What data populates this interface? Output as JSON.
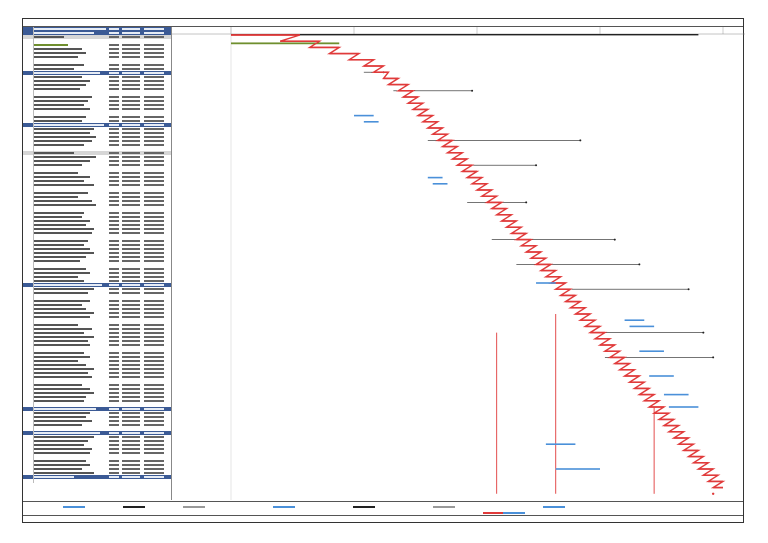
{
  "page": {
    "footer_text": "",
    "title_text": ""
  },
  "colors": {
    "critical": "#e03a3a",
    "normal": "#4a90d9",
    "baseline": "#222222",
    "summary_green": "#6f8f2e",
    "summary_row": "#3b5a95"
  },
  "table": {
    "row_kinds": [
      "summary",
      "summary",
      "sub",
      "blank",
      "green",
      "task",
      "task",
      "task",
      "blank",
      "task",
      "task",
      "summary",
      "task",
      "task",
      "task",
      "task",
      "blank",
      "task",
      "task",
      "task",
      "task",
      "blank",
      "task",
      "task",
      "summary",
      "task",
      "task",
      "task",
      "task",
      "task",
      "blank",
      "sub",
      "task",
      "task",
      "task",
      "blank",
      "task",
      "task",
      "task",
      "task",
      "blank",
      "task",
      "task",
      "task",
      "task",
      "blank",
      "task",
      "task",
      "task",
      "task",
      "task",
      "task",
      "blank",
      "task",
      "task",
      "task",
      "task",
      "task",
      "task",
      "blank",
      "task",
      "task",
      "task",
      "task",
      "summary",
      "task",
      "task",
      "blank",
      "task",
      "task",
      "task",
      "task",
      "task",
      "blank",
      "task",
      "task",
      "task",
      "task",
      "task",
      "task",
      "blank",
      "task",
      "task",
      "task",
      "task",
      "task",
      "task",
      "task",
      "blank",
      "task",
      "task",
      "task",
      "task",
      "task",
      "blank",
      "summary",
      "task",
      "task",
      "task",
      "task",
      "blank",
      "summary",
      "task",
      "task",
      "task",
      "task",
      "task",
      "blank",
      "task",
      "task",
      "task",
      "task",
      "summary",
      "blank"
    ],
    "name_widths": [
      72,
      60,
      30,
      0,
      34,
      48,
      52,
      44,
      0,
      50,
      40,
      66,
      48,
      56,
      52,
      46,
      0,
      58,
      54,
      50,
      56,
      0,
      52,
      48,
      70,
      60,
      56,
      62,
      58,
      50,
      0,
      40,
      62,
      56,
      48,
      0,
      44,
      56,
      50,
      60,
      0,
      54,
      44,
      58,
      62,
      0,
      50,
      48,
      56,
      52,
      60,
      58,
      0,
      54,
      50,
      56,
      60,
      52,
      46,
      0,
      52,
      56,
      44,
      50,
      68,
      60,
      54,
      0,
      56,
      48,
      52,
      60,
      56,
      0,
      44,
      58,
      50,
      60,
      54,
      56,
      0,
      50,
      56,
      44,
      52,
      60,
      54,
      58,
      0,
      48,
      56,
      60,
      52,
      50,
      0,
      62,
      56,
      52,
      58,
      48,
      0,
      66,
      60,
      54,
      50,
      58,
      56,
      0,
      52,
      56,
      48,
      60,
      40,
      0
    ]
  },
  "chart_data": {
    "type": "gantt",
    "series": [
      {
        "name": "critical",
        "tasks": [
          [
            0,
            0.0,
            0.14
          ],
          [
            1,
            0.1,
            0.18
          ],
          [
            2,
            0.16,
            0.22
          ],
          [
            3,
            0.2,
            0.26
          ],
          [
            4,
            0.24,
            0.29
          ],
          [
            5,
            0.27,
            0.31
          ],
          [
            6,
            0.29,
            0.32
          ],
          [
            7,
            0.31,
            0.34
          ],
          [
            8,
            0.32,
            0.36
          ],
          [
            9,
            0.34,
            0.37
          ],
          [
            10,
            0.35,
            0.38
          ],
          [
            11,
            0.36,
            0.39
          ],
          [
            12,
            0.37,
            0.4
          ],
          [
            13,
            0.38,
            0.41
          ],
          [
            14,
            0.39,
            0.42
          ],
          [
            15,
            0.4,
            0.43
          ],
          [
            16,
            0.41,
            0.44
          ],
          [
            17,
            0.42,
            0.45
          ],
          [
            18,
            0.43,
            0.46
          ],
          [
            19,
            0.44,
            0.47
          ],
          [
            20,
            0.45,
            0.48
          ],
          [
            21,
            0.46,
            0.49
          ],
          [
            22,
            0.47,
            0.5
          ],
          [
            23,
            0.48,
            0.51
          ],
          [
            24,
            0.49,
            0.52
          ],
          [
            25,
            0.5,
            0.53
          ],
          [
            26,
            0.51,
            0.54
          ],
          [
            27,
            0.52,
            0.55
          ],
          [
            28,
            0.53,
            0.56
          ],
          [
            29,
            0.54,
            0.57
          ],
          [
            30,
            0.55,
            0.58
          ],
          [
            31,
            0.56,
            0.59
          ],
          [
            32,
            0.57,
            0.6
          ],
          [
            33,
            0.58,
            0.61
          ],
          [
            34,
            0.59,
            0.62
          ],
          [
            35,
            0.6,
            0.63
          ],
          [
            36,
            0.61,
            0.64
          ],
          [
            37,
            0.62,
            0.65
          ],
          [
            38,
            0.63,
            0.66
          ],
          [
            39,
            0.64,
            0.67
          ],
          [
            40,
            0.65,
            0.68
          ],
          [
            41,
            0.66,
            0.69
          ],
          [
            42,
            0.67,
            0.7
          ],
          [
            43,
            0.68,
            0.71
          ],
          [
            44,
            0.69,
            0.72
          ],
          [
            45,
            0.7,
            0.73
          ],
          [
            46,
            0.71,
            0.74
          ],
          [
            47,
            0.72,
            0.75
          ],
          [
            48,
            0.73,
            0.76
          ],
          [
            49,
            0.74,
            0.77
          ],
          [
            50,
            0.75,
            0.78
          ],
          [
            51,
            0.76,
            0.79
          ],
          [
            52,
            0.77,
            0.8
          ],
          [
            53,
            0.78,
            0.81
          ],
          [
            54,
            0.79,
            0.82
          ],
          [
            55,
            0.8,
            0.83
          ],
          [
            56,
            0.81,
            0.84
          ],
          [
            57,
            0.82,
            0.85
          ],
          [
            58,
            0.83,
            0.86
          ],
          [
            59,
            0.84,
            0.87
          ],
          [
            60,
            0.85,
            0.88
          ],
          [
            61,
            0.86,
            0.89
          ],
          [
            62,
            0.87,
            0.9
          ],
          [
            63,
            0.88,
            0.91
          ],
          [
            64,
            0.89,
            0.92
          ],
          [
            65,
            0.9,
            0.93
          ],
          [
            66,
            0.91,
            0.94
          ],
          [
            67,
            0.92,
            0.95
          ],
          [
            68,
            0.93,
            0.96
          ],
          [
            69,
            0.94,
            0.97
          ],
          [
            70,
            0.95,
            0.98
          ],
          [
            71,
            0.96,
            0.99
          ],
          [
            72,
            0.97,
            1.0
          ],
          [
            73,
            0.98,
            1.0
          ]
        ]
      }
    ]
  }
}
